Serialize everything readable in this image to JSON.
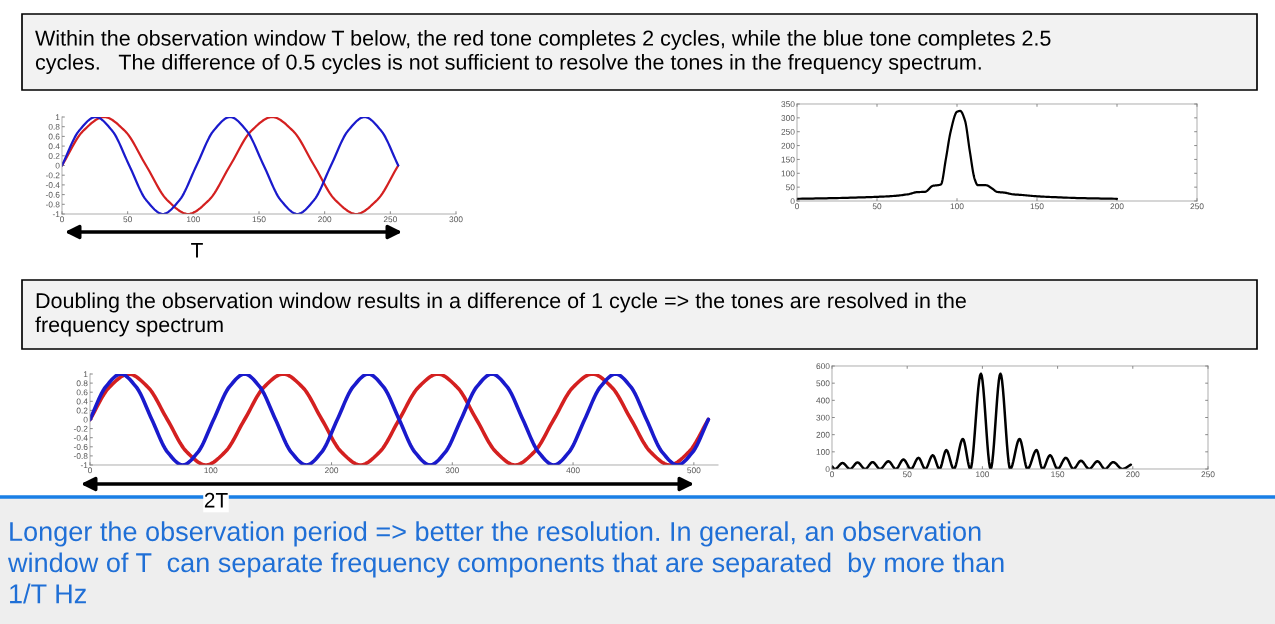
{
  "chart_data": [
    {
      "type": "line",
      "annotations": [
        "Within the observation window T below, the red tone completes 2 cycles, while the blue tone completes 2.5\ncycles.   The difference of 0.5 cycles is not sufficient to resolve the tones in the frequency spectrum.",
        "T"
      ],
      "xlim": [
        0,
        300
      ],
      "xticks": [
        0,
        50,
        100,
        150,
        200,
        250,
        300
      ],
      "ylim": [
        -1,
        1
      ],
      "yticks": [
        -1,
        -0.8,
        -0.6,
        -0.4,
        -0.2,
        0,
        0.2,
        0.4,
        0.6,
        0.8,
        1
      ],
      "series": [
        {
          "color": "#d42020",
          "x": [
            0,
            16,
            32,
            48,
            64,
            80,
            96,
            112,
            128,
            144,
            160,
            176,
            192,
            208,
            224,
            240,
            256
          ],
          "values": [
            0,
            0.71,
            1,
            0.71,
            0,
            -0.71,
            -1,
            -0.71,
            0,
            0.71,
            1,
            0.71,
            0,
            -0.71,
            -1,
            -0.71,
            0
          ]
        },
        {
          "color": "#1a1acc",
          "x": [
            0,
            12.8,
            25.6,
            38.4,
            51.2,
            64,
            76.8,
            89.6,
            102.4,
            115.2,
            128,
            140.8,
            153.6,
            166.4,
            179.2,
            192,
            204.8,
            217.6,
            230.4,
            243.2,
            256
          ],
          "values": [
            0,
            0.71,
            1,
            0.71,
            0,
            -0.71,
            -1,
            -0.71,
            0,
            0.71,
            1,
            0.71,
            0,
            -0.71,
            -1,
            -0.71,
            0,
            0.71,
            1,
            0.71,
            0
          ]
        }
      ]
    },
    {
      "type": "line",
      "xlim": [
        0,
        250
      ],
      "xticks": [
        0,
        50,
        100,
        150,
        200,
        250
      ],
      "ylim": [
        0,
        350
      ],
      "yticks": [
        0,
        50,
        100,
        150,
        200,
        250,
        300,
        350
      ],
      "series": [
        {
          "color": "#000000",
          "x": [
            0,
            20,
            40,
            50,
            60,
            70,
            75,
            80,
            85,
            88,
            90,
            93,
            96,
            100,
            102,
            105,
            108,
            111,
            113,
            118,
            122,
            125,
            130,
            135,
            140,
            150,
            160,
            180,
            200
          ],
          "values": [
            8,
            10,
            13,
            15,
            18,
            25,
            32,
            33,
            55,
            57,
            60,
            150,
            250,
            322,
            325,
            290,
            180,
            80,
            57,
            57,
            45,
            33,
            30,
            24,
            22,
            17,
            14,
            10,
            8
          ]
        }
      ]
    },
    {
      "type": "line",
      "annotations": [
        "Doubling the observation window results in a difference of 1 cycle => the tones are resolved in the\nfrequency spectrum",
        "2T",
        "Longer the observation period => better the resolution. In general, an observation\nwindow of T  can separate frequency components that are separated  by more than\n1/T Hz"
      ],
      "xlim": [
        0,
        520
      ],
      "xticks": [
        0,
        100,
        200,
        300,
        400,
        500
      ],
      "ylim": [
        -1,
        1
      ],
      "yticks": [
        -1,
        -0.8,
        -0.6,
        -0.4,
        -0.2,
        0,
        0.2,
        0.4,
        0.6,
        0.8,
        1
      ],
      "series": [
        {
          "color": "#d42020",
          "x": [
            0,
            16,
            32,
            48,
            64,
            80,
            96,
            112,
            128,
            144,
            160,
            176,
            192,
            208,
            224,
            240,
            256,
            272,
            288,
            304,
            320,
            336,
            352,
            368,
            384,
            400,
            416,
            432,
            448,
            464,
            480,
            496,
            512
          ],
          "values": [
            0,
            0.71,
            1,
            0.71,
            0,
            -0.71,
            -1,
            -0.71,
            0,
            0.71,
            1,
            0.71,
            0,
            -0.71,
            -1,
            -0.71,
            0,
            0.71,
            1,
            0.71,
            0,
            -0.71,
            -1,
            -0.71,
            0,
            0.71,
            1,
            0.71,
            0,
            -0.71,
            -1,
            -0.71,
            0
          ]
        },
        {
          "color": "#1a1acc",
          "x": [
            0,
            12.8,
            25.6,
            38.4,
            51.2,
            64,
            76.8,
            89.6,
            102.4,
            115.2,
            128,
            140.8,
            153.6,
            166.4,
            179.2,
            192,
            204.8,
            217.6,
            230.4,
            243.2,
            256,
            268.8,
            281.6,
            294.4,
            307.2,
            320,
            332.8,
            345.6,
            358.4,
            371.2,
            384,
            396.8,
            409.6,
            422.4,
            435.2,
            448,
            460.8,
            473.6,
            486.4,
            499.2,
            512
          ],
          "values": [
            0,
            0.71,
            1,
            0.71,
            0,
            -0.71,
            -1,
            -0.71,
            0,
            0.71,
            1,
            0.71,
            0,
            -0.71,
            -1,
            -0.71,
            0,
            0.71,
            1,
            0.71,
            0,
            -0.71,
            -1,
            -0.71,
            0,
            0.71,
            1,
            0.71,
            0,
            -0.71,
            -1,
            -0.71,
            0,
            0.71,
            1,
            0.71,
            0,
            -0.71,
            -1,
            -0.71,
            0
          ]
        }
      ]
    },
    {
      "type": "line",
      "xlim": [
        0,
        250
      ],
      "xticks": [
        0,
        50,
        100,
        150,
        200,
        250
      ],
      "ylim": [
        0,
        600
      ],
      "yticks": [
        0,
        100,
        200,
        300,
        400,
        500,
        600
      ],
      "series": [
        {
          "color": "#000000",
          "x": [
            0,
            2,
            7,
            12,
            17,
            22,
            27,
            32,
            37.5,
            42.5,
            47.5,
            52.5,
            57.5,
            62,
            67,
            71.5,
            76,
            81,
            87,
            92,
            99,
            105.5,
            112,
            118.5,
            124.7,
            130,
            136,
            140,
            145,
            150,
            155.5,
            160.5,
            165.5,
            171,
            176.5,
            181.5,
            187,
            193,
            198.7
          ],
          "values": [
            15,
            0,
            35,
            0,
            38,
            0,
            40,
            0,
            45,
            0,
            55,
            0,
            65,
            0,
            80,
            0,
            110,
            0,
            175,
            0,
            555,
            0,
            555,
            0,
            175,
            0,
            110,
            0,
            80,
            0,
            65,
            0,
            48,
            0,
            45,
            0,
            40,
            0,
            25
          ]
        }
      ]
    }
  ]
}
